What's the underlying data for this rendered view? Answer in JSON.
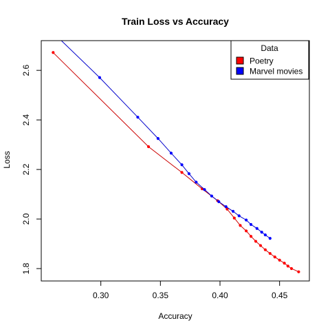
{
  "chart_data": {
    "type": "line",
    "title": "Train Loss vs Accuracy",
    "xlabel": "Accuracy",
    "ylabel": "Loss",
    "xlim": [
      0.25,
      0.475
    ],
    "ylim": [
      1.75,
      2.72
    ],
    "x_ticks": [
      0.3,
      0.35,
      0.4,
      0.45
    ],
    "x_tick_labels": [
      "0.30",
      "0.35",
      "0.40",
      "0.45"
    ],
    "y_ticks": [
      1.8,
      2.0,
      2.2,
      2.4,
      2.6
    ],
    "y_tick_labels": [
      "1.8",
      "2.0",
      "2.2",
      "2.4",
      "2.6"
    ],
    "grid": false,
    "legend": {
      "title": "Data",
      "placement": "top-right"
    },
    "series": [
      {
        "name": "Poetry",
        "color": "#ff0000",
        "line_color": "#cc0000",
        "points": [
          [
            0.26,
            2.672
          ],
          [
            0.34,
            2.292
          ],
          [
            0.368,
            2.188
          ],
          [
            0.385,
            2.122
          ],
          [
            0.398,
            2.074
          ],
          [
            0.406,
            2.04
          ],
          [
            0.412,
            2.004
          ],
          [
            0.417,
            1.974
          ],
          [
            0.422,
            1.952
          ],
          [
            0.426,
            1.93
          ],
          [
            0.43,
            1.91
          ],
          [
            0.434,
            1.893
          ],
          [
            0.438,
            1.876
          ],
          [
            0.442,
            1.861
          ],
          [
            0.446,
            1.847
          ],
          [
            0.45,
            1.834
          ],
          [
            0.454,
            1.822
          ],
          [
            0.457,
            1.81
          ],
          [
            0.46,
            1.8
          ],
          [
            0.466,
            1.787
          ]
        ]
      },
      {
        "name": "Marvel movies",
        "color": "#0000ff",
        "line_color": "#0000cc",
        "points": [
          [
            0.26,
            2.752
          ],
          [
            0.299,
            2.571
          ],
          [
            0.331,
            2.411
          ],
          [
            0.348,
            2.325
          ],
          [
            0.359,
            2.266
          ],
          [
            0.368,
            2.219
          ],
          [
            0.374,
            2.183
          ],
          [
            0.38,
            2.149
          ],
          [
            0.387,
            2.119
          ],
          [
            0.393,
            2.093
          ],
          [
            0.399,
            2.07
          ],
          [
            0.405,
            2.05
          ],
          [
            0.411,
            2.031
          ],
          [
            0.416,
            2.013
          ],
          [
            0.422,
            1.996
          ],
          [
            0.426,
            1.978
          ],
          [
            0.431,
            1.962
          ],
          [
            0.435,
            1.947
          ],
          [
            0.438,
            1.936
          ],
          [
            0.442,
            1.922
          ]
        ]
      }
    ]
  }
}
